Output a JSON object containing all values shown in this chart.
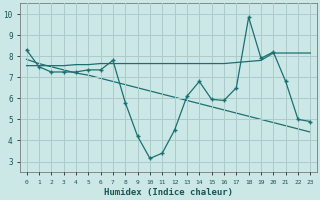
{
  "xlabel": "Humidex (Indice chaleur)",
  "ylabel": "",
  "xlim": [
    -0.5,
    23.5
  ],
  "ylim": [
    2.5,
    10.5
  ],
  "yticks": [
    3,
    4,
    5,
    6,
    7,
    8,
    9,
    10
  ],
  "xticks": [
    0,
    1,
    2,
    3,
    4,
    5,
    6,
    7,
    8,
    9,
    10,
    11,
    12,
    13,
    14,
    15,
    16,
    17,
    18,
    19,
    20,
    21,
    22,
    23
  ],
  "bg_color": "#cce8e6",
  "grid_color": "#aaccca",
  "line_color": "#1a7070",
  "main_y": [
    8.3,
    7.5,
    7.25,
    7.25,
    7.25,
    7.35,
    7.35,
    7.8,
    5.8,
    4.2,
    3.15,
    3.4,
    4.5,
    6.1,
    6.8,
    5.95,
    5.9,
    6.5,
    9.85,
    7.9,
    8.2,
    6.8,
    5.0,
    4.9
  ],
  "smooth1_y": [
    7.55,
    7.55,
    7.55,
    7.55,
    7.6,
    7.6,
    7.65,
    7.65,
    7.65,
    7.65,
    7.65,
    7.65,
    7.65,
    7.65,
    7.65,
    7.65,
    7.65,
    7.7,
    7.75,
    7.8,
    8.15,
    8.15,
    8.15,
    8.15
  ],
  "trend_y": [
    7.85,
    7.65,
    7.5,
    7.35,
    7.2,
    7.1,
    6.95,
    6.8,
    6.65,
    6.5,
    6.35,
    6.2,
    6.05,
    5.9,
    5.75,
    5.6,
    5.45,
    5.3,
    5.15,
    5.0,
    4.85,
    4.7,
    4.55,
    4.4
  ]
}
